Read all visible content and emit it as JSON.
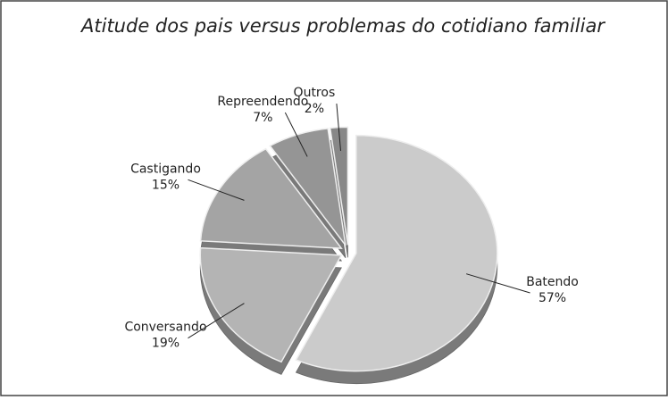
{
  "chart_data": {
    "type": "pie",
    "title": "Atitude dos pais versus problemas do cotidiano familiar",
    "categories": [
      "Batendo",
      "Conversando",
      "Castigando",
      "Repreendendo",
      "Outros"
    ],
    "values": [
      57,
      19,
      15,
      7,
      2
    ],
    "value_labels": [
      "57%",
      "19%",
      "15%",
      "7%",
      "2%"
    ],
    "colors": [
      "#cbcbcb",
      "#b4b4b4",
      "#a4a4a4",
      "#959595",
      "#888888"
    ]
  }
}
